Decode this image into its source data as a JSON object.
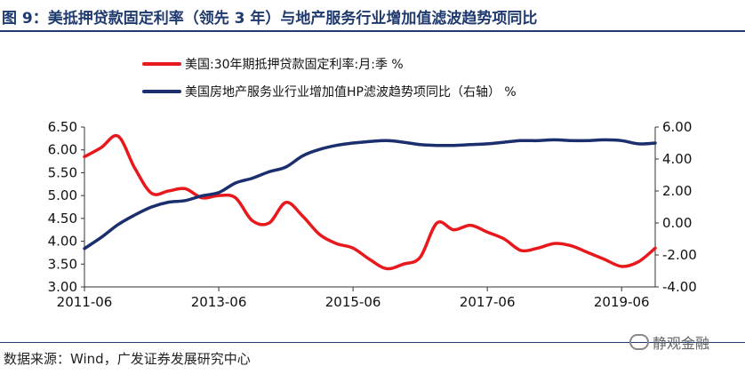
{
  "header": {
    "title": "图 9：美抵押贷款固定利率（领先 3 年）与地产服务行业增加值滤波趋势项同比"
  },
  "footer": {
    "source": "数据来源：Wind，广发证券发展研究中心",
    "watermark": "静观金融"
  },
  "chart_data": {
    "type": "line",
    "title": "",
    "x": [
      "2011-06",
      "2011-09",
      "2011-12",
      "2012-03",
      "2012-06",
      "2012-09",
      "2012-12",
      "2013-03",
      "2013-06",
      "2013-09",
      "2013-12",
      "2014-03",
      "2014-06",
      "2014-09",
      "2014-12",
      "2015-03",
      "2015-06",
      "2015-09",
      "2015-12",
      "2016-03",
      "2016-06",
      "2016-09",
      "2016-12",
      "2017-03",
      "2017-06",
      "2017-09",
      "2017-12",
      "2018-03",
      "2018-06",
      "2018-09",
      "2018-12",
      "2019-03",
      "2019-06",
      "2019-09",
      "2019-12"
    ],
    "xticks": [
      "2011-06",
      "2013-06",
      "2015-06",
      "2017-06",
      "2019-06"
    ],
    "series": [
      {
        "name": "美国:30年期抵押贷款固定利率:月:季 %",
        "axis": "left",
        "color": "#e8191c",
        "values": [
          5.85,
          6.05,
          6.3,
          5.6,
          5.05,
          5.1,
          5.15,
          4.95,
          5.0,
          4.95,
          4.45,
          4.4,
          4.85,
          4.55,
          4.15,
          3.95,
          3.85,
          3.6,
          3.4,
          3.5,
          3.65,
          4.4,
          4.25,
          4.35,
          4.2,
          4.05,
          3.8,
          3.85,
          3.95,
          3.9,
          3.75,
          3.6,
          3.45,
          3.55,
          3.85
        ]
      },
      {
        "name": "美国房地产服务业行业增加值HP滤波趋势项同比（右轴） %",
        "axis": "right",
        "color": "#1b2f6e",
        "values": [
          -1.6,
          -0.9,
          -0.1,
          0.5,
          1.0,
          1.3,
          1.4,
          1.7,
          1.9,
          2.5,
          2.8,
          3.2,
          3.5,
          4.2,
          4.6,
          4.85,
          5.0,
          5.1,
          5.15,
          5.05,
          4.9,
          4.85,
          4.85,
          4.9,
          4.95,
          5.05,
          5.15,
          5.15,
          5.2,
          5.15,
          5.15,
          5.2,
          5.15,
          4.95,
          5.0
        ]
      }
    ],
    "ylim": [
      3.0,
      6.5
    ],
    "yticks": [
      "6.50",
      "6.00",
      "5.50",
      "5.00",
      "4.50",
      "4.00",
      "3.50",
      "3.00"
    ],
    "y2lim": [
      -4.0,
      6.0
    ],
    "y2ticks": [
      "6.00",
      "4.00",
      "2.00",
      "0.00",
      "-2.00",
      "-4.00"
    ],
    "grid": false,
    "legend": "top"
  }
}
